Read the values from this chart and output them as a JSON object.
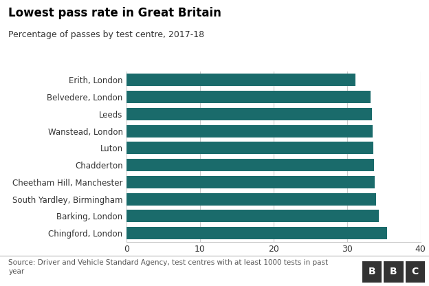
{
  "title": "Lowest pass rate in Great Britain",
  "subtitle": "Percentage of passes by test centre, 2017-18",
  "categories": [
    "Chingford, London",
    "Barking, London",
    "South Yardley, Birmingham",
    "Cheetham Hill, Manchester",
    "Chadderton",
    "Luton",
    "Wanstead, London",
    "Leeds",
    "Belvedere, London",
    "Erith, London"
  ],
  "values": [
    35.5,
    34.3,
    34.0,
    33.8,
    33.7,
    33.6,
    33.5,
    33.4,
    33.2,
    31.2
  ],
  "bar_color": "#1a6b6b",
  "background_color": "#ffffff",
  "xlim": [
    0,
    40
  ],
  "xticks": [
    0,
    10,
    20,
    30,
    40
  ],
  "source_text": "Source: Driver and Vehicle Standard Agency, test centres with at least 1000 tests in past\nyear",
  "bbc_letters": [
    "B",
    "B",
    "C"
  ]
}
